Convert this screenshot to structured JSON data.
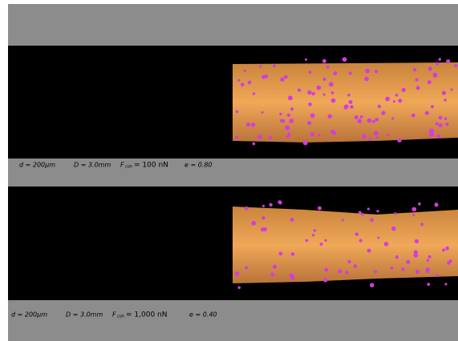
{
  "panels": [
    {
      "d": "d = 200μm",
      "D": "D = 3.0mm",
      "f_symbol": "F",
      "f_subscript": "coh",
      "f_value": "= 100 nN",
      "e": "e = 0.80"
    },
    {
      "d": "d = 200μm",
      "D": "D = 3.0mm",
      "f_symbol": "F",
      "f_subscript": "coh",
      "f_value": "= 1,000 nN",
      "e": "e = 0.40"
    }
  ]
}
